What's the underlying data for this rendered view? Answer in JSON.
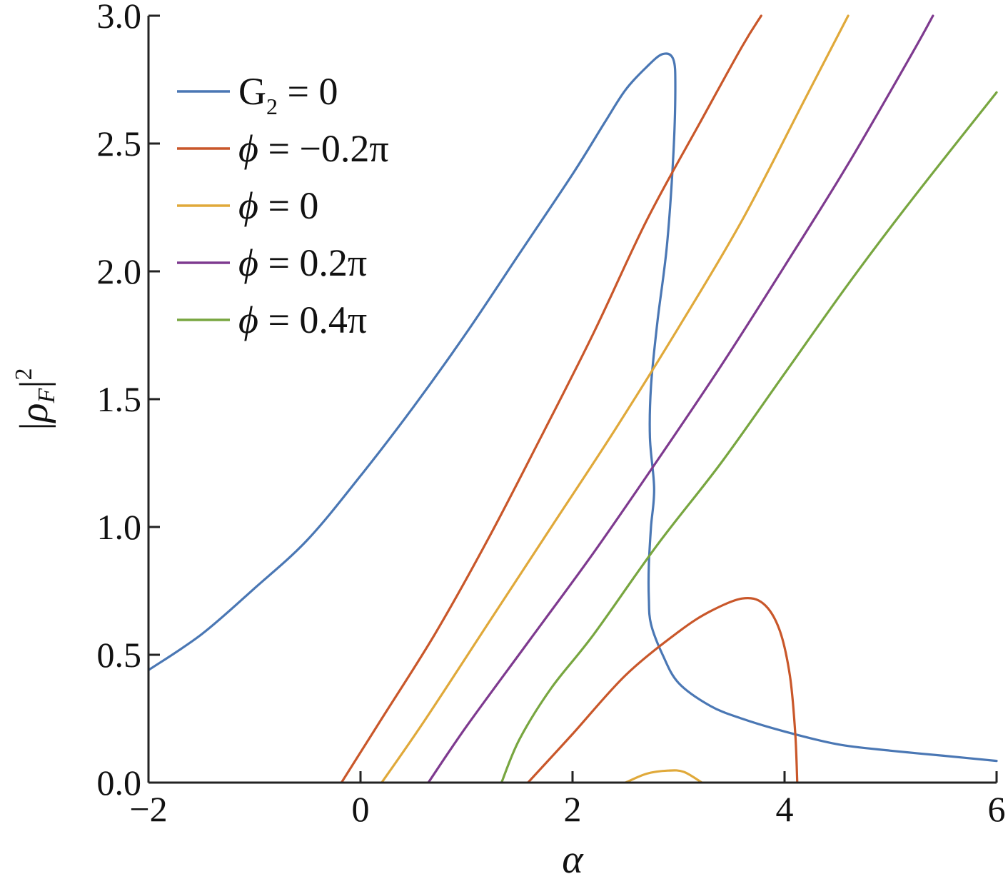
{
  "chart_data": {
    "type": "line",
    "xlabel": "α",
    "ylabel": "|ρF|²",
    "ylabel_parts": {
      "base": "ρ",
      "sub": "F",
      "sup": "2"
    },
    "xlim": [
      -2,
      6
    ],
    "ylim": [
      0,
      3.0
    ],
    "xticks": [
      -2,
      0,
      2,
      4,
      6
    ],
    "xtick_labels": [
      "−2",
      "0",
      "2",
      "4",
      "6"
    ],
    "yticks": [
      0,
      0.5,
      1.0,
      1.5,
      2.0,
      2.5,
      3.0
    ],
    "ytick_labels": [
      "0.0",
      "0.5",
      "1.0",
      "1.5",
      "2.0",
      "2.5",
      "3.0"
    ],
    "grid": false,
    "legend_position": "top-left",
    "series": [
      {
        "name": "G2 = 0",
        "label_parts": {
          "pre": "G",
          "sub": "2",
          "post": " = 0",
          "italic_symbol": false
        },
        "color": "#4a77b4",
        "points": [
          [
            -2.0,
            0.44
          ],
          [
            -1.5,
            0.58
          ],
          [
            -1.0,
            0.76
          ],
          [
            -0.5,
            0.95
          ],
          [
            0.0,
            1.2
          ],
          [
            0.5,
            1.47
          ],
          [
            1.0,
            1.76
          ],
          [
            1.5,
            2.07
          ],
          [
            2.0,
            2.38
          ],
          [
            2.3,
            2.58
          ],
          [
            2.5,
            2.71
          ],
          [
            2.7,
            2.8
          ],
          [
            2.85,
            2.85
          ],
          [
            2.95,
            2.83
          ],
          [
            2.97,
            2.72
          ],
          [
            2.95,
            2.45
          ],
          [
            2.89,
            2.1
          ],
          [
            2.8,
            1.8
          ],
          [
            2.74,
            1.55
          ],
          [
            2.73,
            1.35
          ],
          [
            2.77,
            1.15
          ],
          [
            2.74,
            1.0
          ],
          [
            2.72,
            0.85
          ],
          [
            2.72,
            0.72
          ],
          [
            2.74,
            0.62
          ],
          [
            2.85,
            0.5
          ],
          [
            3.0,
            0.39
          ],
          [
            3.3,
            0.3
          ],
          [
            3.6,
            0.25
          ],
          [
            4.0,
            0.2
          ],
          [
            4.5,
            0.15
          ],
          [
            5.0,
            0.125
          ],
          [
            5.5,
            0.105
          ],
          [
            6.0,
            0.085
          ]
        ]
      },
      {
        "name": "ϕ = −0.2π",
        "label_parts": {
          "pre": "ϕ",
          "sub": "",
          "post": " = −0.2π",
          "italic_symbol": true
        },
        "color": "#c9572a",
        "points": [
          [
            -0.18,
            0.0
          ],
          [
            0.2,
            0.25
          ],
          [
            0.7,
            0.58
          ],
          [
            1.2,
            0.95
          ],
          [
            1.7,
            1.35
          ],
          [
            2.2,
            1.76
          ],
          [
            2.7,
            2.2
          ],
          [
            3.2,
            2.58
          ],
          [
            3.6,
            2.88
          ],
          [
            3.78,
            3.0
          ]
        ],
        "points_lower_branch": [
          [
            1.58,
            0.0
          ],
          [
            2.0,
            0.19
          ],
          [
            2.5,
            0.42
          ],
          [
            3.0,
            0.59
          ],
          [
            3.3,
            0.67
          ],
          [
            3.6,
            0.72
          ],
          [
            3.8,
            0.7
          ],
          [
            3.95,
            0.6
          ],
          [
            4.05,
            0.42
          ],
          [
            4.1,
            0.2
          ],
          [
            4.12,
            0.0
          ]
        ]
      },
      {
        "name": "ϕ = 0",
        "label_parts": {
          "pre": "ϕ",
          "sub": "",
          "post": " = 0",
          "italic_symbol": true
        },
        "color": "#e0a93a",
        "points": [
          [
            0.2,
            0.0
          ],
          [
            0.6,
            0.24
          ],
          [
            1.2,
            0.62
          ],
          [
            1.8,
            1.0
          ],
          [
            2.4,
            1.38
          ],
          [
            3.0,
            1.78
          ],
          [
            3.6,
            2.2
          ],
          [
            4.2,
            2.68
          ],
          [
            4.6,
            3.0
          ]
        ],
        "points_lower_branch": [
          [
            2.5,
            0.0
          ],
          [
            2.7,
            0.035
          ],
          [
            2.9,
            0.047
          ],
          [
            3.05,
            0.042
          ],
          [
            3.22,
            0.0
          ]
        ]
      },
      {
        "name": "ϕ = 0.2π",
        "label_parts": {
          "pre": "ϕ",
          "sub": "",
          "post": " = 0.2π",
          "italic_symbol": true
        },
        "color": "#7e3a8f",
        "points": [
          [
            0.64,
            0.0
          ],
          [
            1.0,
            0.22
          ],
          [
            1.6,
            0.56
          ],
          [
            2.2,
            0.9
          ],
          [
            2.8,
            1.26
          ],
          [
            3.4,
            1.63
          ],
          [
            4.0,
            2.02
          ],
          [
            4.6,
            2.42
          ],
          [
            5.2,
            2.85
          ],
          [
            5.4,
            3.0
          ]
        ]
      },
      {
        "name": "ϕ = 0.4π",
        "label_parts": {
          "pre": "ϕ",
          "sub": "",
          "post": " = 0.4π",
          "italic_symbol": true
        },
        "color": "#78a640",
        "points": [
          [
            1.33,
            0.0
          ],
          [
            1.5,
            0.17
          ],
          [
            1.8,
            0.37
          ],
          [
            2.2,
            0.58
          ],
          [
            2.8,
            0.93
          ],
          [
            3.4,
            1.25
          ],
          [
            4.0,
            1.6
          ],
          [
            4.6,
            1.95
          ],
          [
            5.2,
            2.28
          ],
          [
            6.0,
            2.7
          ]
        ]
      }
    ]
  }
}
